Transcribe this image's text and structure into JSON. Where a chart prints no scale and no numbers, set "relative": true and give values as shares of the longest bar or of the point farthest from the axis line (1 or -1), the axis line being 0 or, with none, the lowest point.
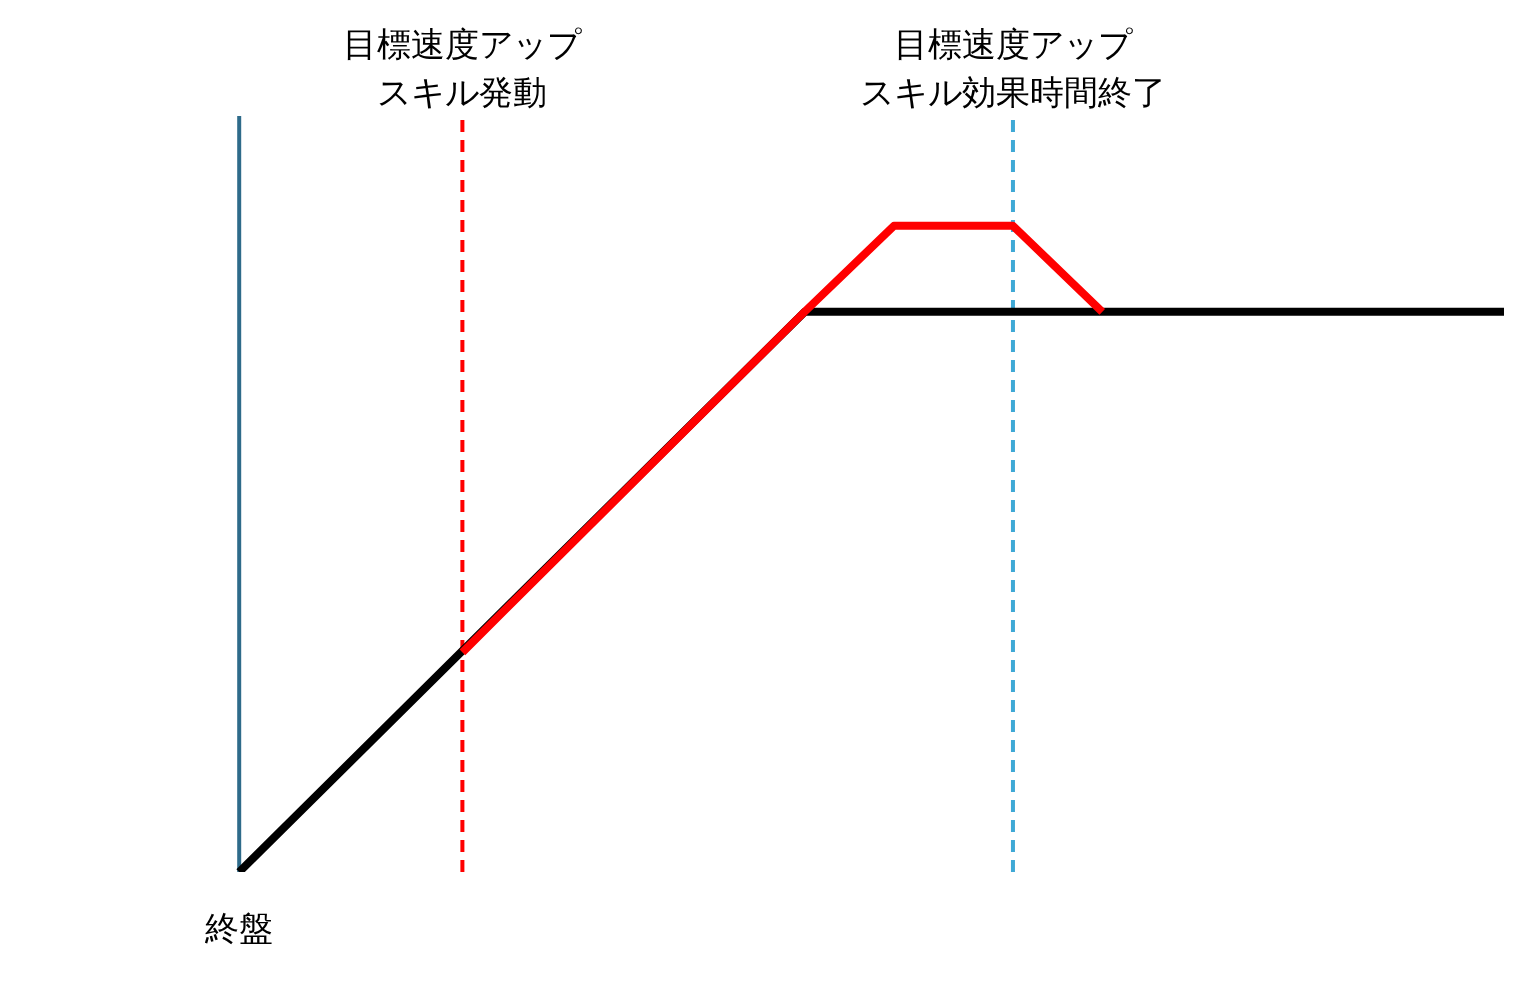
{
  "chart_data": {
    "type": "line",
    "relative": true,
    "marker": "none",
    "line_style": "solid",
    "categories": [
      null,
      null,
      null,
      null,
      null,
      null,
      null,
      null,
      null,
      null,
      null,
      null,
      null,
      null,
      null,
      null,
      null,
      null,
      null,
      null,
      null,
      null,
      null,
      null,
      null,
      null,
      null,
      null,
      null,
      null,
      null,
      null,
      null,
      null,
      null,
      null,
      null,
      null,
      null,
      null,
      null,
      null,
      null,
      null,
      null,
      null,
      null,
      null,
      null,
      null,
      null,
      null,
      null,
      null,
      null,
      null,
      null,
      null,
      null,
      null,
      null,
      null,
      null,
      null,
      null,
      null,
      null,
      null,
      null,
      null,
      null,
      null,
      null,
      null,
      null,
      null,
      null,
      null,
      null,
      null,
      null,
      null,
      null,
      null,
      null,
      null,
      null,
      null,
      null,
      null,
      null,
      null,
      null,
      null,
      null,
      null,
      null,
      null,
      null,
      null,
      null
    ],
    "series": [
      {
        "color": "#000000",
        "values": [
          null,
          null,
          null,
          null,
          null,
          null,
          null,
          null,
          null,
          null,
          null,
          null,
          null,
          null,
          null,
          0,
          null,
          null,
          null,
          null,
          null,
          null,
          null,
          null,
          null,
          null,
          null,
          null,
          null,
          null,
          null,
          null,
          null,
          null,
          null,
          null,
          null,
          null,
          null,
          null,
          null,
          null,
          null,
          null,
          null,
          null,
          null,
          null,
          null,
          null,
          null,
          null,
          null,
          0.867,
          null,
          null,
          null,
          null,
          null,
          null,
          null,
          null,
          null,
          null,
          null,
          null,
          null,
          null,
          null,
          null,
          null,
          null,
          null,
          null,
          null,
          null,
          null,
          null,
          null,
          null,
          null,
          null,
          null,
          null,
          null,
          null,
          null,
          null,
          null,
          null,
          null,
          null,
          null,
          null,
          null,
          null,
          null,
          null,
          null,
          null,
          0.867
        ]
      },
      {
        "color": "#ff0000",
        "values": [
          null,
          null,
          null,
          null,
          null,
          null,
          null,
          null,
          null,
          null,
          null,
          null,
          null,
          null,
          null,
          null,
          null,
          null,
          null,
          null,
          null,
          null,
          null,
          null,
          null,
          null,
          null,
          null,
          null,
          null,
          0.34,
          null,
          null,
          null,
          null,
          null,
          null,
          null,
          null,
          null,
          null,
          null,
          null,
          null,
          null,
          null,
          null,
          null,
          null,
          null,
          null,
          null,
          null,
          0.867,
          null,
          null,
          null,
          null,
          null,
          1,
          null,
          null,
          null,
          null,
          null,
          null,
          null,
          1,
          null,
          null,
          null,
          null,
          null,
          0.867,
          null,
          null,
          null,
          null,
          null,
          null,
          null,
          null,
          null,
          null,
          null,
          null,
          null,
          null,
          null,
          null,
          null,
          null,
          null,
          null,
          null,
          null,
          null,
          null,
          null,
          null,
          null
        ]
      }
    ],
    "annotations": [
      "終盤",
      "目標速度アップ",
      "スキル発動",
      "目標速度アップ",
      "スキル効果時間終了"
    ]
  }
}
